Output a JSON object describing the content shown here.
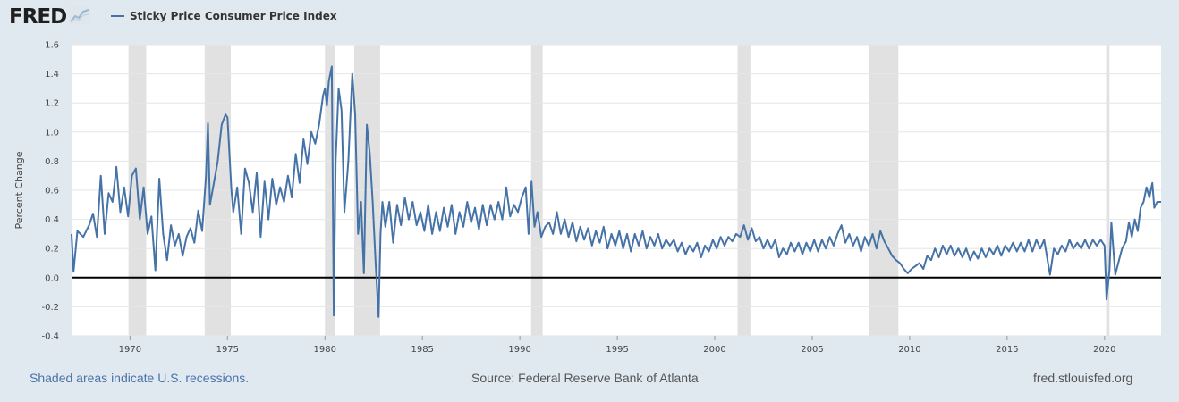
{
  "header": {
    "logo_text": "FRED",
    "logo_graph_icon": "line-graph-icon",
    "legend_label": "Sticky Price Consumer Price Index"
  },
  "footer": {
    "recession_note": "Shaded areas indicate U.S. recessions.",
    "source": "Source: Federal Reserve Bank of Atlanta",
    "site": "fred.stlouisfed.org"
  },
  "colors": {
    "background": "#e1e9f0",
    "plot_background": "#ffffff",
    "series": "#4572a7",
    "recession_shading": "#e1e1e1",
    "gridline": "#e6e6e6",
    "zero_line": "#000000"
  },
  "chart_data": {
    "type": "line",
    "title": "",
    "ylabel": "Percent Change",
    "xlabel": "",
    "xlim": [
      1967.0,
      2022.9
    ],
    "ylim": [
      -0.4,
      1.6
    ],
    "grid": true,
    "legend_position": "top-left",
    "x_ticks": [
      1970,
      1975,
      1980,
      1985,
      1990,
      1995,
      2000,
      2005,
      2010,
      2015,
      2020
    ],
    "y_ticks": [
      "-0.4",
      "-0.2",
      "0.0",
      "0.2",
      "0.4",
      "0.6",
      "0.8",
      "1.0",
      "1.2",
      "1.4",
      "1.6"
    ],
    "recessions": [
      [
        1969.92,
        1970.83
      ],
      [
        1973.83,
        1975.17
      ],
      [
        1980.0,
        1980.5
      ],
      [
        1981.5,
        1982.83
      ],
      [
        1990.58,
        1991.17
      ],
      [
        2001.17,
        2001.83
      ],
      [
        2007.92,
        2009.42
      ],
      [
        2020.08,
        2020.25
      ]
    ],
    "series": [
      {
        "name": "Sticky Price Consumer Price Index",
        "points": [
          [
            1967.0,
            0.3
          ],
          [
            1967.1,
            0.04
          ],
          [
            1967.3,
            0.32
          ],
          [
            1967.6,
            0.28
          ],
          [
            1967.9,
            0.36
          ],
          [
            1968.1,
            0.44
          ],
          [
            1968.3,
            0.28
          ],
          [
            1968.5,
            0.7
          ],
          [
            1968.7,
            0.3
          ],
          [
            1968.9,
            0.58
          ],
          [
            1969.1,
            0.52
          ],
          [
            1969.3,
            0.76
          ],
          [
            1969.5,
            0.45
          ],
          [
            1969.7,
            0.62
          ],
          [
            1969.9,
            0.42
          ],
          [
            1970.1,
            0.7
          ],
          [
            1970.3,
            0.75
          ],
          [
            1970.5,
            0.4
          ],
          [
            1970.7,
            0.62
          ],
          [
            1970.9,
            0.3
          ],
          [
            1971.1,
            0.42
          ],
          [
            1971.3,
            0.05
          ],
          [
            1971.5,
            0.68
          ],
          [
            1971.7,
            0.3
          ],
          [
            1971.9,
            0.12
          ],
          [
            1972.1,
            0.36
          ],
          [
            1972.3,
            0.22
          ],
          [
            1972.5,
            0.3
          ],
          [
            1972.7,
            0.15
          ],
          [
            1972.9,
            0.28
          ],
          [
            1973.1,
            0.34
          ],
          [
            1973.3,
            0.24
          ],
          [
            1973.5,
            0.46
          ],
          [
            1973.7,
            0.32
          ],
          [
            1973.9,
            0.7
          ],
          [
            1974.0,
            1.06
          ],
          [
            1974.1,
            0.5
          ],
          [
            1974.3,
            0.65
          ],
          [
            1974.5,
            0.8
          ],
          [
            1974.7,
            1.05
          ],
          [
            1974.9,
            1.12
          ],
          [
            1975.0,
            1.1
          ],
          [
            1975.2,
            0.6
          ],
          [
            1975.3,
            0.45
          ],
          [
            1975.5,
            0.62
          ],
          [
            1975.7,
            0.3
          ],
          [
            1975.9,
            0.75
          ],
          [
            1976.1,
            0.65
          ],
          [
            1976.3,
            0.45
          ],
          [
            1976.5,
            0.72
          ],
          [
            1976.7,
            0.28
          ],
          [
            1976.9,
            0.66
          ],
          [
            1977.1,
            0.4
          ],
          [
            1977.3,
            0.68
          ],
          [
            1977.5,
            0.5
          ],
          [
            1977.7,
            0.62
          ],
          [
            1977.9,
            0.52
          ],
          [
            1978.1,
            0.7
          ],
          [
            1978.3,
            0.55
          ],
          [
            1978.5,
            0.85
          ],
          [
            1978.7,
            0.65
          ],
          [
            1978.9,
            0.95
          ],
          [
            1979.1,
            0.78
          ],
          [
            1979.3,
            1.0
          ],
          [
            1979.5,
            0.92
          ],
          [
            1979.7,
            1.05
          ],
          [
            1979.9,
            1.25
          ],
          [
            1980.0,
            1.3
          ],
          [
            1980.1,
            1.18
          ],
          [
            1980.2,
            1.35
          ],
          [
            1980.35,
            1.45
          ],
          [
            1980.45,
            -0.26
          ],
          [
            1980.55,
            0.8
          ],
          [
            1980.7,
            1.3
          ],
          [
            1980.85,
            1.15
          ],
          [
            1981.0,
            0.45
          ],
          [
            1981.2,
            0.8
          ],
          [
            1981.4,
            1.4
          ],
          [
            1981.55,
            1.12
          ],
          [
            1981.7,
            0.3
          ],
          [
            1981.85,
            0.52
          ],
          [
            1982.0,
            0.03
          ],
          [
            1982.15,
            1.05
          ],
          [
            1982.3,
            0.85
          ],
          [
            1982.45,
            0.52
          ],
          [
            1982.6,
            0.1
          ],
          [
            1982.75,
            -0.27
          ],
          [
            1982.85,
            0.3
          ],
          [
            1982.95,
            0.52
          ],
          [
            1983.1,
            0.35
          ],
          [
            1983.3,
            0.52
          ],
          [
            1983.5,
            0.24
          ],
          [
            1983.7,
            0.5
          ],
          [
            1983.9,
            0.36
          ],
          [
            1984.1,
            0.55
          ],
          [
            1984.3,
            0.4
          ],
          [
            1984.5,
            0.52
          ],
          [
            1984.7,
            0.36
          ],
          [
            1984.9,
            0.45
          ],
          [
            1985.1,
            0.32
          ],
          [
            1985.3,
            0.5
          ],
          [
            1985.5,
            0.3
          ],
          [
            1985.7,
            0.45
          ],
          [
            1985.9,
            0.32
          ],
          [
            1986.1,
            0.48
          ],
          [
            1986.3,
            0.35
          ],
          [
            1986.5,
            0.5
          ],
          [
            1986.7,
            0.3
          ],
          [
            1986.9,
            0.45
          ],
          [
            1987.1,
            0.35
          ],
          [
            1987.3,
            0.52
          ],
          [
            1987.5,
            0.38
          ],
          [
            1987.7,
            0.48
          ],
          [
            1987.9,
            0.33
          ],
          [
            1988.1,
            0.5
          ],
          [
            1988.3,
            0.36
          ],
          [
            1988.5,
            0.5
          ],
          [
            1988.7,
            0.4
          ],
          [
            1988.9,
            0.52
          ],
          [
            1989.1,
            0.4
          ],
          [
            1989.3,
            0.62
          ],
          [
            1989.5,
            0.42
          ],
          [
            1989.7,
            0.5
          ],
          [
            1989.9,
            0.45
          ],
          [
            1990.1,
            0.55
          ],
          [
            1990.3,
            0.62
          ],
          [
            1990.45,
            0.3
          ],
          [
            1990.6,
            0.66
          ],
          [
            1990.75,
            0.35
          ],
          [
            1990.9,
            0.45
          ],
          [
            1991.1,
            0.28
          ],
          [
            1991.3,
            0.35
          ],
          [
            1991.5,
            0.38
          ],
          [
            1991.7,
            0.3
          ],
          [
            1991.9,
            0.45
          ],
          [
            1992.1,
            0.3
          ],
          [
            1992.3,
            0.4
          ],
          [
            1992.5,
            0.28
          ],
          [
            1992.7,
            0.38
          ],
          [
            1992.9,
            0.25
          ],
          [
            1993.1,
            0.35
          ],
          [
            1993.3,
            0.26
          ],
          [
            1993.5,
            0.34
          ],
          [
            1993.7,
            0.22
          ],
          [
            1993.9,
            0.32
          ],
          [
            1994.1,
            0.24
          ],
          [
            1994.3,
            0.35
          ],
          [
            1994.5,
            0.2
          ],
          [
            1994.7,
            0.3
          ],
          [
            1994.9,
            0.22
          ],
          [
            1995.1,
            0.32
          ],
          [
            1995.3,
            0.2
          ],
          [
            1995.5,
            0.3
          ],
          [
            1995.7,
            0.18
          ],
          [
            1995.9,
            0.3
          ],
          [
            1996.1,
            0.22
          ],
          [
            1996.3,
            0.32
          ],
          [
            1996.5,
            0.2
          ],
          [
            1996.7,
            0.28
          ],
          [
            1996.9,
            0.22
          ],
          [
            1997.1,
            0.3
          ],
          [
            1997.3,
            0.2
          ],
          [
            1997.5,
            0.26
          ],
          [
            1997.7,
            0.22
          ],
          [
            1997.9,
            0.26
          ],
          [
            1998.1,
            0.18
          ],
          [
            1998.3,
            0.24
          ],
          [
            1998.5,
            0.16
          ],
          [
            1998.7,
            0.22
          ],
          [
            1998.9,
            0.18
          ],
          [
            1999.1,
            0.24
          ],
          [
            1999.3,
            0.14
          ],
          [
            1999.5,
            0.22
          ],
          [
            1999.7,
            0.18
          ],
          [
            1999.9,
            0.26
          ],
          [
            2000.1,
            0.2
          ],
          [
            2000.3,
            0.28
          ],
          [
            2000.5,
            0.22
          ],
          [
            2000.7,
            0.28
          ],
          [
            2000.9,
            0.25
          ],
          [
            2001.1,
            0.3
          ],
          [
            2001.3,
            0.28
          ],
          [
            2001.5,
            0.36
          ],
          [
            2001.7,
            0.26
          ],
          [
            2001.9,
            0.34
          ],
          [
            2002.1,
            0.25
          ],
          [
            2002.3,
            0.28
          ],
          [
            2002.5,
            0.2
          ],
          [
            2002.7,
            0.26
          ],
          [
            2002.9,
            0.2
          ],
          [
            2003.1,
            0.26
          ],
          [
            2003.3,
            0.14
          ],
          [
            2003.5,
            0.2
          ],
          [
            2003.7,
            0.16
          ],
          [
            2003.9,
            0.24
          ],
          [
            2004.1,
            0.18
          ],
          [
            2004.3,
            0.24
          ],
          [
            2004.5,
            0.16
          ],
          [
            2004.7,
            0.24
          ],
          [
            2004.9,
            0.18
          ],
          [
            2005.1,
            0.26
          ],
          [
            2005.3,
            0.18
          ],
          [
            2005.5,
            0.26
          ],
          [
            2005.7,
            0.2
          ],
          [
            2005.9,
            0.28
          ],
          [
            2006.1,
            0.22
          ],
          [
            2006.3,
            0.3
          ],
          [
            2006.5,
            0.36
          ],
          [
            2006.7,
            0.24
          ],
          [
            2006.9,
            0.3
          ],
          [
            2007.1,
            0.22
          ],
          [
            2007.3,
            0.28
          ],
          [
            2007.5,
            0.18
          ],
          [
            2007.7,
            0.28
          ],
          [
            2007.9,
            0.22
          ],
          [
            2008.1,
            0.3
          ],
          [
            2008.3,
            0.2
          ],
          [
            2008.5,
            0.32
          ],
          [
            2008.7,
            0.25
          ],
          [
            2008.9,
            0.2
          ],
          [
            2009.1,
            0.15
          ],
          [
            2009.3,
            0.12
          ],
          [
            2009.5,
            0.1
          ],
          [
            2009.7,
            0.06
          ],
          [
            2009.9,
            0.03
          ],
          [
            2010.1,
            0.06
          ],
          [
            2010.3,
            0.08
          ],
          [
            2010.5,
            0.1
          ],
          [
            2010.7,
            0.06
          ],
          [
            2010.9,
            0.15
          ],
          [
            2011.1,
            0.12
          ],
          [
            2011.3,
            0.2
          ],
          [
            2011.5,
            0.14
          ],
          [
            2011.7,
            0.22
          ],
          [
            2011.9,
            0.16
          ],
          [
            2012.1,
            0.22
          ],
          [
            2012.3,
            0.15
          ],
          [
            2012.5,
            0.2
          ],
          [
            2012.7,
            0.14
          ],
          [
            2012.9,
            0.2
          ],
          [
            2013.1,
            0.12
          ],
          [
            2013.3,
            0.18
          ],
          [
            2013.5,
            0.13
          ],
          [
            2013.7,
            0.2
          ],
          [
            2013.9,
            0.14
          ],
          [
            2014.1,
            0.2
          ],
          [
            2014.3,
            0.16
          ],
          [
            2014.5,
            0.22
          ],
          [
            2014.7,
            0.15
          ],
          [
            2014.9,
            0.22
          ],
          [
            2015.1,
            0.18
          ],
          [
            2015.3,
            0.24
          ],
          [
            2015.5,
            0.18
          ],
          [
            2015.7,
            0.24
          ],
          [
            2015.9,
            0.18
          ],
          [
            2016.1,
            0.26
          ],
          [
            2016.3,
            0.18
          ],
          [
            2016.5,
            0.26
          ],
          [
            2016.7,
            0.2
          ],
          [
            2016.9,
            0.26
          ],
          [
            2017.1,
            0.1
          ],
          [
            2017.2,
            0.02
          ],
          [
            2017.4,
            0.2
          ],
          [
            2017.6,
            0.16
          ],
          [
            2017.8,
            0.22
          ],
          [
            2018.0,
            0.18
          ],
          [
            2018.2,
            0.26
          ],
          [
            2018.4,
            0.2
          ],
          [
            2018.6,
            0.24
          ],
          [
            2018.8,
            0.2
          ],
          [
            2019.0,
            0.26
          ],
          [
            2019.2,
            0.2
          ],
          [
            2019.4,
            0.26
          ],
          [
            2019.6,
            0.22
          ],
          [
            2019.8,
            0.26
          ],
          [
            2020.0,
            0.22
          ],
          [
            2020.1,
            -0.15
          ],
          [
            2020.25,
            0.05
          ],
          [
            2020.35,
            0.38
          ],
          [
            2020.45,
            0.2
          ],
          [
            2020.55,
            0.02
          ],
          [
            2020.7,
            0.1
          ],
          [
            2020.9,
            0.2
          ],
          [
            2021.1,
            0.25
          ],
          [
            2021.25,
            0.38
          ],
          [
            2021.4,
            0.28
          ],
          [
            2021.55,
            0.4
          ],
          [
            2021.7,
            0.32
          ],
          [
            2021.85,
            0.48
          ],
          [
            2022.0,
            0.52
          ],
          [
            2022.15,
            0.62
          ],
          [
            2022.3,
            0.55
          ],
          [
            2022.45,
            0.65
          ],
          [
            2022.55,
            0.48
          ],
          [
            2022.7,
            0.52
          ],
          [
            2022.9,
            0.52
          ]
        ]
      }
    ]
  }
}
